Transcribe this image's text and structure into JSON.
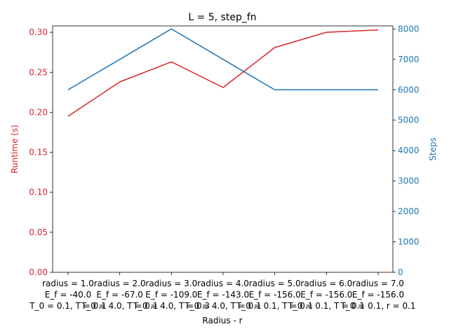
{
  "chart_data": {
    "type": "line",
    "title": "L = 5, step_fn",
    "xlabel": "Radius - r",
    "ylabel_left": "Runtime (s)",
    "ylabel_right": "Steps",
    "categories": [
      [
        "radius = 1.0",
        "E_f = -40.0",
        "T_0 = 0.1, T = 0.1"
      ],
      [
        "radius = 2.0",
        "E_f = -67.0",
        "T_0 = 4.0, T = 0.1"
      ],
      [
        "radius = 3.0",
        "E_f = -109.0",
        "T_0 = 4.0, T = 0.3"
      ],
      [
        "radius = 4.0",
        "E_f = -143.0",
        "T_0 = 4.0, T = 0.1"
      ],
      [
        "radius = 5.0",
        "E_f = -156.0",
        "T_0 = 0.1, T = 0.1"
      ],
      [
        "radius = 6.0",
        "E_f = -156.0",
        "T_0 = 0.1, T = 0.1"
      ],
      [
        "radius = 7.0",
        "E_f = -156.0",
        "T_0 = 0.1, r = 0.1"
      ]
    ],
    "series": [
      {
        "axis": "left",
        "color": "#d62728",
        "values": [
          0.195,
          0.238,
          0.263,
          0.231,
          0.281,
          0.3,
          0.303
        ]
      },
      {
        "axis": "right",
        "color": "#1f77b4",
        "values": [
          6000,
          7000,
          8000,
          7000,
          6000,
          6000,
          6000
        ]
      }
    ],
    "ylim_left": [
      0,
      0.308
    ],
    "yticks_left": [
      "0.00",
      "0.05",
      "0.10",
      "0.15",
      "0.20",
      "0.25",
      "0.30"
    ],
    "ylim_right": [
      0,
      8100
    ],
    "yticks_right": [
      "0",
      "1000",
      "2000",
      "3000",
      "4000",
      "5000",
      "6000",
      "7000",
      "8000"
    ],
    "grid": false,
    "left_axis_color": "#d62728",
    "right_axis_color": "#1f77b4"
  }
}
